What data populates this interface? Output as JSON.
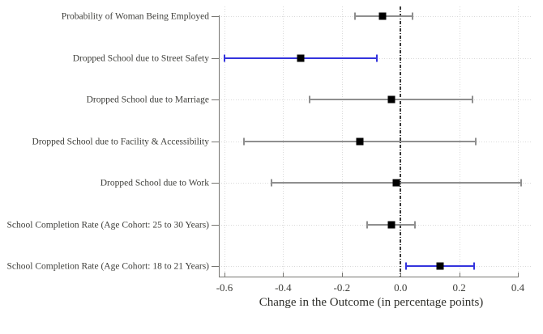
{
  "chart_data": {
    "type": "scatter",
    "subtype": "coefficient-plot-with-confidence-intervals",
    "title": "",
    "xlabel": "Change in the Outcome (in percentage points)",
    "ylabel": "",
    "xlim": [
      -0.62,
      0.45
    ],
    "xticks": [
      {
        "value": -0.6,
        "label": "-0.6"
      },
      {
        "value": -0.4,
        "label": "-0.4"
      },
      {
        "value": -0.2,
        "label": "-0.2"
      },
      {
        "value": 0.0,
        "label": "0.0"
      },
      {
        "value": 0.2,
        "label": "0.2"
      },
      {
        "value": 0.4,
        "label": "0.4"
      }
    ],
    "grid": "dotted",
    "legend": "none",
    "zero_reference_line": {
      "x": 0,
      "style": "dash-dot"
    },
    "marker": "filled-square",
    "rows": [
      {
        "label": "Probability of Woman Being Employed",
        "estimate": -0.06,
        "ci_low": -0.155,
        "ci_high": 0.04,
        "color_key": "gray"
      },
      {
        "label": "Dropped School due to Street Safety",
        "estimate": -0.34,
        "ci_low": -0.6,
        "ci_high": -0.08,
        "color_key": "blue"
      },
      {
        "label": "Dropped School due to Marriage",
        "estimate": -0.03,
        "ci_low": -0.31,
        "ci_high": 0.245,
        "color_key": "gray"
      },
      {
        "label": "Dropped School due to Facility & Accessibility",
        "estimate": -0.14,
        "ci_low": -0.535,
        "ci_high": 0.255,
        "color_key": "gray"
      },
      {
        "label": "Dropped School due to Work",
        "estimate": -0.015,
        "ci_low": -0.44,
        "ci_high": 0.41,
        "color_key": "gray"
      },
      {
        "label": "School Completion Rate (Age Cohort: 25 to 30 Years)",
        "estimate": -0.03,
        "ci_low": -0.115,
        "ci_high": 0.05,
        "color_key": "gray"
      },
      {
        "label": "School Completion Rate (Age Cohort: 18 to 21 Years)",
        "estimate": 0.135,
        "ci_low": 0.02,
        "ci_high": 0.25,
        "color_key": "blue"
      }
    ],
    "colors": {
      "gray": "#8f8f8f",
      "blue": "#3434dd",
      "marker": "#000000",
      "grid": "#dadada",
      "zero_line": "#3a3a3a",
      "axis": "#777672",
      "text": "#3e3e3a"
    }
  }
}
